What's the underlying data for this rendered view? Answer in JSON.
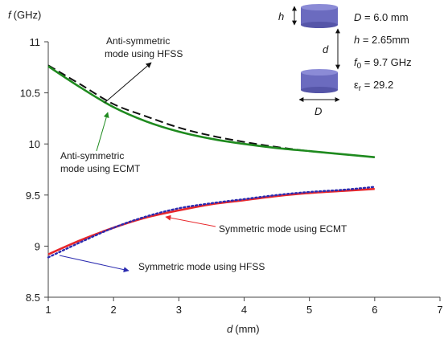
{
  "chart_data": {
    "type": "line",
    "ylabel_var": "f",
    "ylabel_unit": "(GHz)",
    "xlabel_var": "d",
    "xlabel_unit": "(mm)",
    "xlim": [
      1,
      7
    ],
    "ylim": [
      8.5,
      11
    ],
    "xticks": [
      1,
      2,
      3,
      4,
      5,
      6,
      7
    ],
    "yticks": [
      8.5,
      9,
      9.5,
      10,
      10.5,
      11
    ],
    "ytick_labels": [
      "8.5",
      "9",
      "9.5",
      "10",
      "10.5",
      "11"
    ],
    "grid": false,
    "series": [
      {
        "name": "Anti-symmetric mode using HFSS",
        "color": "#111111",
        "style": "dashed",
        "x": [
          1,
          1.5,
          2,
          2.5,
          3,
          3.5,
          4,
          4.5,
          5,
          5.5,
          6
        ],
        "y": [
          10.77,
          10.58,
          10.39,
          10.27,
          10.16,
          10.08,
          10.02,
          9.97,
          9.93,
          9.9,
          9.87
        ]
      },
      {
        "name": "Anti-symmetric mode using ECMT",
        "color": "#1e8a1e",
        "style": "solid",
        "x": [
          1,
          1.5,
          2,
          2.5,
          3,
          3.5,
          4,
          4.5,
          5,
          5.5,
          6
        ],
        "y": [
          10.76,
          10.55,
          10.36,
          10.22,
          10.12,
          10.05,
          10,
          9.96,
          9.93,
          9.9,
          9.87
        ]
      },
      {
        "name": "Symmetric mode using ECMT",
        "color": "#e8262a",
        "style": "solid",
        "x": [
          1,
          1.5,
          2,
          2.5,
          3,
          3.5,
          4,
          4.5,
          5,
          5.5,
          6
        ],
        "y": [
          8.92,
          9.06,
          9.18,
          9.28,
          9.35,
          9.41,
          9.45,
          9.49,
          9.52,
          9.54,
          9.56
        ]
      },
      {
        "name": "Symmetric mode using HFSS",
        "color": "#2b2bb0",
        "style": "dotted",
        "x": [
          1,
          1.5,
          2,
          2.5,
          3,
          3.5,
          4,
          4.5,
          5,
          5.5,
          6
        ],
        "y": [
          8.89,
          9.04,
          9.18,
          9.29,
          9.37,
          9.42,
          9.46,
          9.5,
          9.53,
          9.55,
          9.58
        ]
      }
    ],
    "annotations": {
      "anti_hfss": [
        "Anti-symmetric",
        "mode using HFSS"
      ],
      "anti_ecmt": [
        "Anti-symmetric",
        "mode using ECMT"
      ],
      "sym_ecmt": "Symmetric mode using ECMT",
      "sym_hfss": "Symmetric mode using HFSS"
    },
    "inset": {
      "h_label": "h",
      "d_label": "d",
      "D_label": "D",
      "params": {
        "D": {
          "sym": "D",
          "rest": " = 6.0 mm"
        },
        "h": {
          "sym": "h",
          "rest": " = 2.65mm"
        },
        "f0": {
          "sym": "f",
          "sub": "0",
          "rest": " = 9.7 GHz"
        },
        "er": {
          "sym": "ε",
          "sub": "r",
          "rest": " = 29.2"
        }
      },
      "cylinder_color": "#6b6bbf"
    }
  }
}
